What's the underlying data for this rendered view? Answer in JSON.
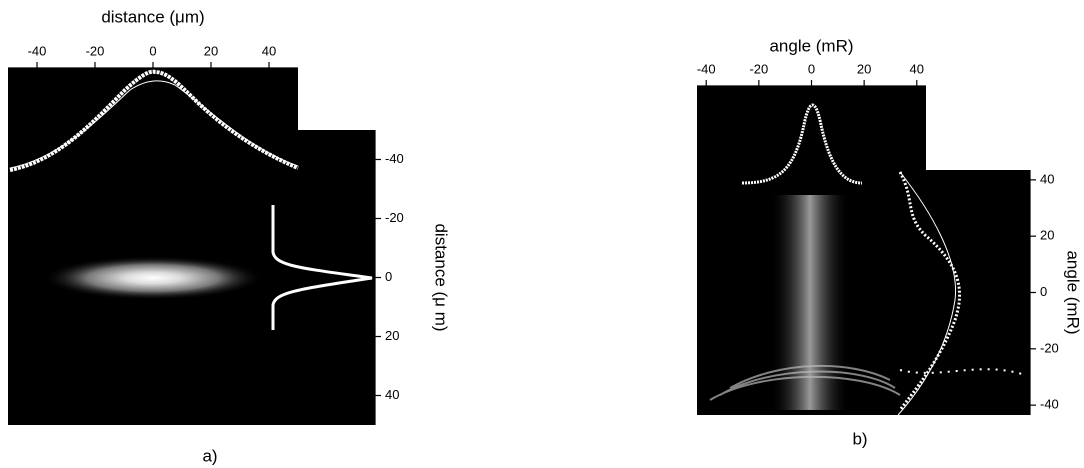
{
  "chart_data": [
    {
      "type": "image",
      "title": "distance (μm)",
      "ylabel": "distance (μ m)",
      "caption": "a)",
      "xlim": [
        -50,
        50
      ],
      "xticks": [
        -40,
        -20,
        0,
        20,
        40
      ],
      "ylim": [
        -50,
        50
      ],
      "yticks": [
        -40,
        -20,
        0,
        20,
        40
      ]
    },
    {
      "type": "image",
      "title": "angle (mR)",
      "ylabel": "angle (mR)",
      "caption": "b)",
      "xlim": [
        -43.5,
        43.5
      ],
      "xticks": [
        -40,
        -20,
        0,
        20,
        40
      ],
      "ylim": [
        43.5,
        -43.5
      ],
      "yticks": [
        40,
        20,
        0,
        -20,
        -40
      ]
    }
  ]
}
